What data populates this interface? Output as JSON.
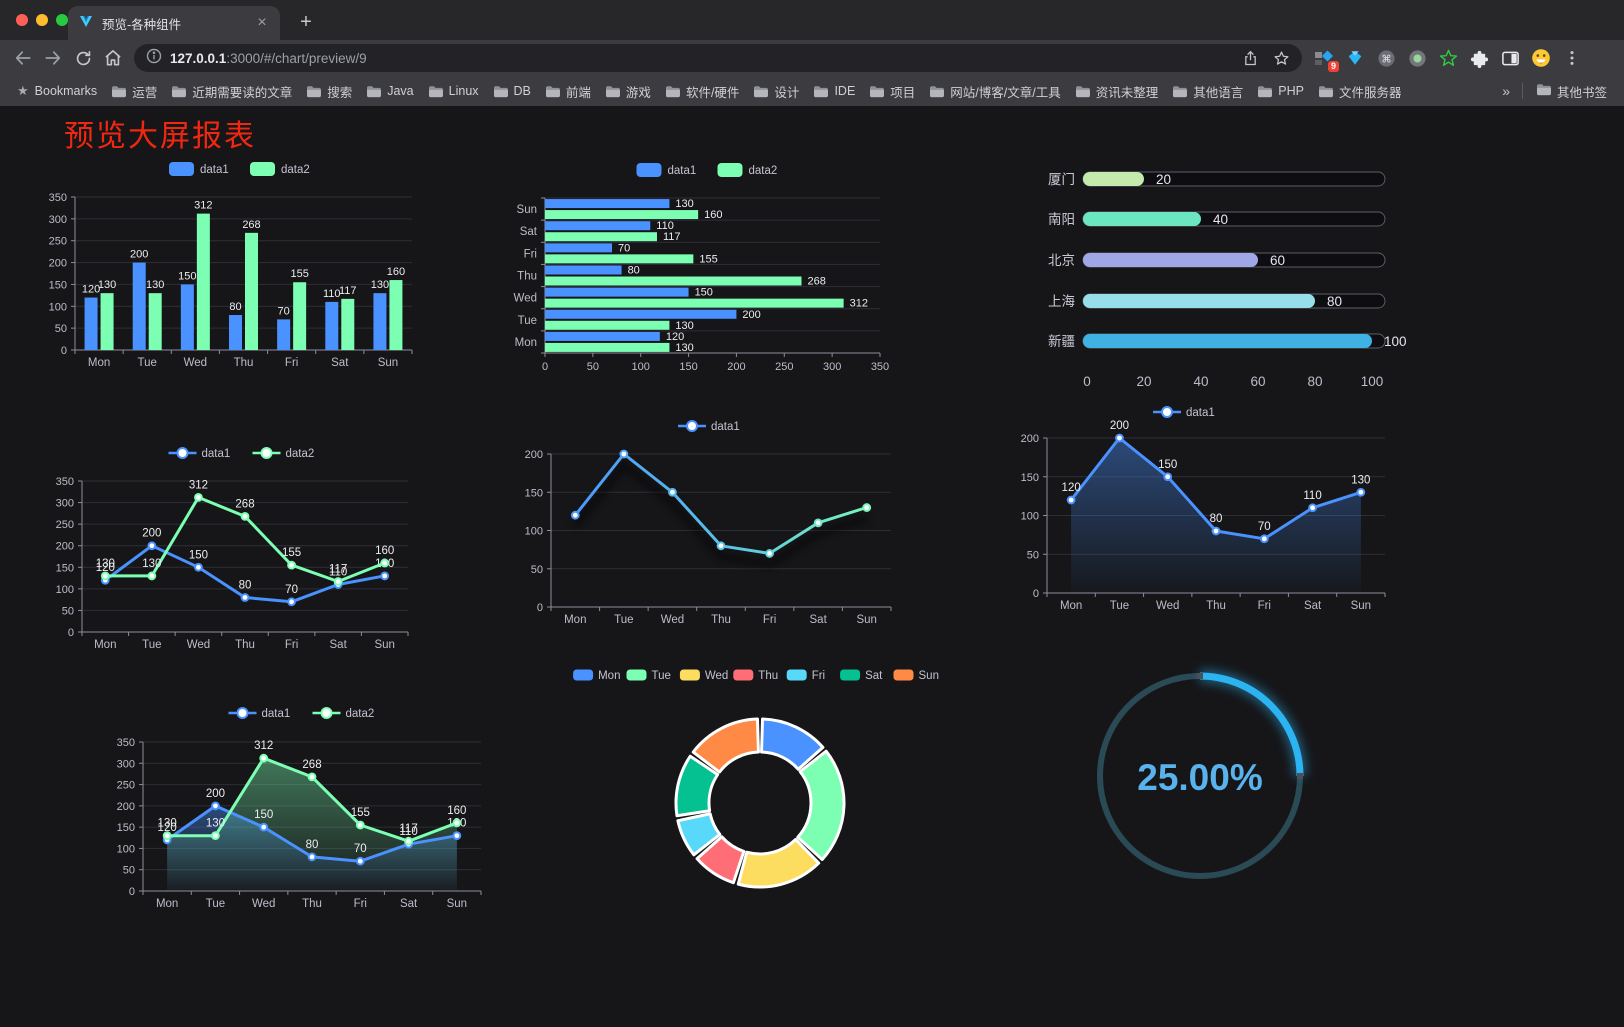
{
  "browser": {
    "tab": {
      "title": "预览-各种组件",
      "close_glyph": "×",
      "new_tab_glyph": "+"
    },
    "url": {
      "host": "127.0.0.1",
      "rest": ":3000/#/chart/preview/9"
    },
    "bookmarks_label": "Bookmarks",
    "bookmarks": [
      "运营",
      "近期需要读的文章",
      "搜索",
      "Java",
      "Linux",
      "DB",
      "前端",
      "游戏",
      "软件/硬件",
      "设计",
      "IDE",
      "项目",
      "网站/博客/文章/工具",
      "资讯未整理",
      "其他语言",
      "PHP",
      "文件服务器"
    ],
    "overflow_glyph": "»",
    "other_bookmarks": "其他书签",
    "extension_badge": "9"
  },
  "page": {
    "title": "预览大屏报表",
    "title_color": "#f1270f",
    "background": "#161619"
  },
  "chart_data": [
    {
      "type": "bar",
      "legend_position": "top",
      "grid": true,
      "labels": true,
      "categories": [
        "Mon",
        "Tue",
        "Wed",
        "Thu",
        "Fri",
        "Sat",
        "Sun"
      ],
      "series": [
        {
          "name": "data1",
          "color": "#4992ff",
          "values": [
            120,
            200,
            150,
            80,
            70,
            110,
            130
          ]
        },
        {
          "name": "data2",
          "color": "#7cffb2",
          "values": [
            130,
            130,
            312,
            268,
            155,
            117,
            160
          ]
        }
      ],
      "ylim": [
        0,
        350
      ],
      "ytick": 50
    },
    {
      "type": "hbar",
      "legend_position": "top",
      "grid": true,
      "labels": true,
      "categories": [
        "Mon",
        "Tue",
        "Wed",
        "Thu",
        "Fri",
        "Sat",
        "Sun"
      ],
      "display_order": "Sun top to Mon bottom",
      "series": [
        {
          "name": "data1",
          "color": "#4992ff",
          "values": [
            120,
            200,
            150,
            80,
            70,
            110,
            130
          ]
        },
        {
          "name": "data2",
          "color": "#7cffb2",
          "values": [
            130,
            130,
            312,
            268,
            155,
            117,
            160
          ]
        }
      ],
      "xlim": [
        0,
        350
      ],
      "xtick": 50
    },
    {
      "type": "progress",
      "xticks": [
        0,
        20,
        40,
        60,
        80,
        100
      ],
      "xlim": [
        0,
        100
      ],
      "items": [
        {
          "label": "厦门",
          "value": 20,
          "color": "#c4ebad"
        },
        {
          "label": "南阳",
          "value": 40,
          "color": "#6be6c1"
        },
        {
          "label": "北京",
          "value": 60,
          "color": "#a0a7e6"
        },
        {
          "label": "上海",
          "value": 80,
          "color": "#96dee8"
        },
        {
          "label": "新疆",
          "value": 100,
          "color": "#3fb1e3"
        }
      ]
    },
    {
      "type": "line",
      "legend_position": "top",
      "grid": true,
      "labels": true,
      "categories": [
        "Mon",
        "Tue",
        "Wed",
        "Thu",
        "Fri",
        "Sat",
        "Sun"
      ],
      "series": [
        {
          "name": "data1",
          "color": "#4992ff",
          "values": [
            120,
            200,
            150,
            80,
            70,
            110,
            130
          ]
        },
        {
          "name": "data2",
          "color": "#7cffb2",
          "values": [
            130,
            130,
            312,
            268,
            155,
            117,
            160
          ]
        }
      ],
      "ylim": [
        0,
        350
      ],
      "ytick": 50
    },
    {
      "type": "line",
      "legend_position": "top",
      "grid": true,
      "labels": false,
      "shadow": true,
      "categories": [
        "Mon",
        "Tue",
        "Wed",
        "Thu",
        "Fri",
        "Sat",
        "Sun"
      ],
      "series": [
        {
          "name": "data1",
          "gradient": [
            "#4992ff",
            "#58c0e8",
            "#7cffb2"
          ],
          "values": [
            120,
            200,
            150,
            80,
            70,
            110,
            130
          ]
        }
      ],
      "ylim": [
        0,
        200
      ],
      "ytick": 50
    },
    {
      "type": "line",
      "legend_position": "top",
      "grid": true,
      "labels": true,
      "area": true,
      "categories": [
        "Mon",
        "Tue",
        "Wed",
        "Thu",
        "Fri",
        "Sat",
        "Sun"
      ],
      "series": [
        {
          "name": "data1",
          "color": "#4992ff",
          "values": [
            120,
            200,
            150,
            80,
            70,
            110,
            130
          ]
        }
      ],
      "ylim": [
        0,
        200
      ],
      "ytick": 50
    },
    {
      "type": "line",
      "legend_position": "top",
      "grid": true,
      "labels": true,
      "area": true,
      "categories": [
        "Mon",
        "Tue",
        "Wed",
        "Thu",
        "Fri",
        "Sat",
        "Sun"
      ],
      "series": [
        {
          "name": "data1",
          "color": "#4992ff",
          "values": [
            120,
            200,
            150,
            80,
            70,
            110,
            130
          ]
        },
        {
          "name": "data2",
          "color": "#7cffb2",
          "values": [
            130,
            130,
            312,
            268,
            155,
            117,
            160
          ]
        }
      ],
      "ylim": [
        0,
        350
      ],
      "ytick": 50
    },
    {
      "type": "pie",
      "subtype": "donut",
      "legend_position": "top",
      "categories": [
        "Mon",
        "Tue",
        "Wed",
        "Thu",
        "Fri",
        "Sat",
        "Sun"
      ],
      "values": [
        120,
        200,
        150,
        80,
        70,
        110,
        130
      ],
      "colors": [
        "#4992ff",
        "#7cffb2",
        "#fddd60",
        "#ff6e76",
        "#58d9f9",
        "#05c091",
        "#ff8a45"
      ]
    },
    {
      "type": "gauge",
      "percent": 25,
      "value_label": "25.00%",
      "arc_color": "#2bb3f2",
      "track_color": "#2a4a55",
      "text_color": "#5ab2ec"
    }
  ]
}
